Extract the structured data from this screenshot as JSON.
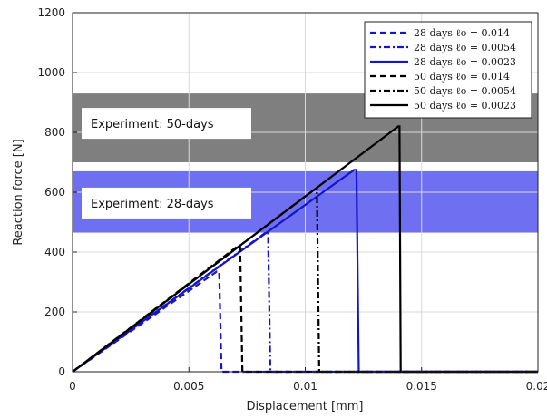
{
  "chart_data": {
    "type": "line",
    "title": "",
    "xlabel": "Displacement [mm]",
    "ylabel": "Reaction force [N]",
    "xlim": [
      0,
      0.02
    ],
    "ylim": [
      0,
      1200
    ],
    "xticks": [
      0,
      0.005,
      0.01,
      0.015,
      0.02
    ],
    "xtick_labels": [
      "0",
      "0.005",
      "0.01",
      "0.015",
      "0.02"
    ],
    "yticks": [
      0,
      200,
      400,
      600,
      800,
      1000,
      1200
    ],
    "ytick_labels": [
      "0",
      "200",
      "400",
      "600",
      "800",
      "1000",
      "1200"
    ],
    "grid": true,
    "legend_position": "top-right",
    "bands": [
      {
        "label": "Experiment: 50-days",
        "ymin": 700,
        "ymax": 930,
        "color": "#7f7f7f"
      },
      {
        "label": "Experiment: 28-days",
        "ymin": 465,
        "ymax": 670,
        "color": "#6f6ff2"
      }
    ],
    "series": [
      {
        "name": "28 days ℓo = 0.014",
        "color": "#1414c8",
        "dash": "dashed",
        "x": [
          0,
          0.0062,
          0.0063,
          0.0064,
          0.02
        ],
        "y": [
          0,
          335,
          335,
          0,
          0
        ]
      },
      {
        "name": "28 days ℓo = 0.0054",
        "color": "#1414c8",
        "dash": "dashdot",
        "x": [
          0,
          0.0083,
          0.0084,
          0.0085,
          0.02
        ],
        "y": [
          0,
          465,
          465,
          0,
          0
        ]
      },
      {
        "name": "28 days ℓo = 0.0023",
        "color": "#1414c8",
        "dash": "solid",
        "x": [
          0,
          0.0121,
          0.0122,
          0.0123,
          0.02
        ],
        "y": [
          0,
          675,
          675,
          0,
          0
        ]
      },
      {
        "name": "50 days ℓo = 0.014",
        "color": "#000000",
        "dash": "dashed",
        "x": [
          0,
          0.0071,
          0.0072,
          0.0073,
          0.02
        ],
        "y": [
          0,
          420,
          420,
          0,
          0
        ]
      },
      {
        "name": "50 days ℓo = 0.0054",
        "color": "#000000",
        "dash": "dashdot",
        "x": [
          0,
          0.0104,
          0.0105,
          0.0106,
          0.02
        ],
        "y": [
          0,
          610,
          610,
          0,
          0
        ]
      },
      {
        "name": "50 days ℓo = 0.0023",
        "color": "#000000",
        "dash": "solid",
        "x": [
          0,
          0.014,
          0.01405,
          0.0141,
          0.02
        ],
        "y": [
          0,
          820,
          820,
          0,
          0
        ]
      }
    ]
  }
}
